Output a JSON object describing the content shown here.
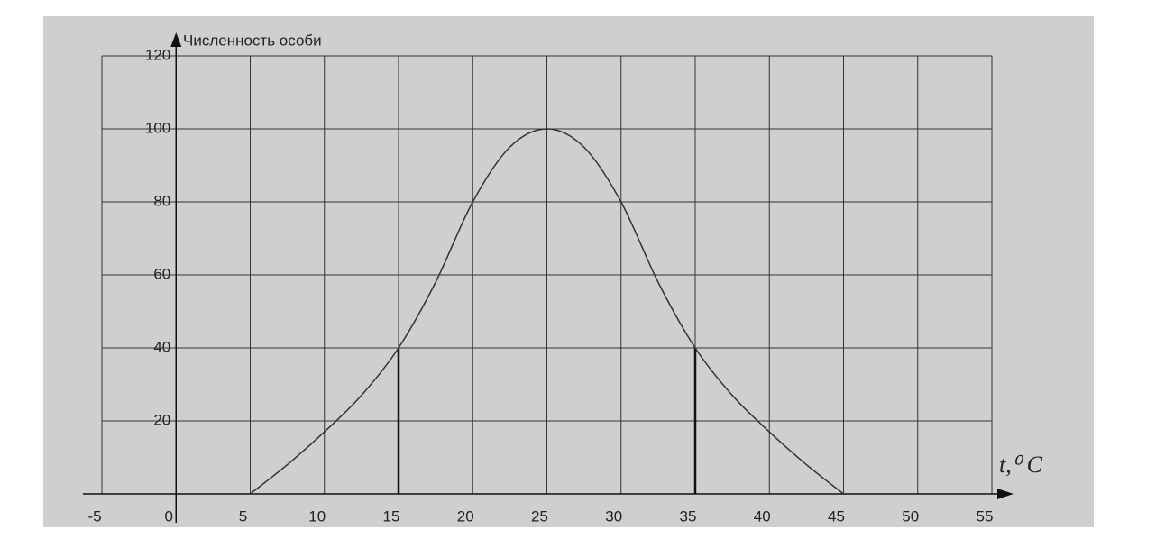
{
  "chart_data": {
    "type": "line",
    "y_axis_label": "Численность особи",
    "x_axis_label": "t,⁰ C",
    "x": [
      5,
      7.5,
      10,
      12.5,
      15,
      17.5,
      20,
      22.5,
      25,
      27.5,
      30,
      32.5,
      35,
      37.5,
      40,
      42.5,
      45
    ],
    "series": [
      {
        "color": "#333333",
        "values": [
          0,
          8,
          17,
          27,
          40,
          58,
          80,
          95,
          100,
          95,
          80,
          58,
          40,
          27,
          17,
          8,
          0
        ]
      }
    ],
    "drop_lines": [
      {
        "x": 15,
        "y": 40
      },
      {
        "x": 35,
        "y": 40
      }
    ],
    "xlim": [
      -5,
      55
    ],
    "ylim": [
      0,
      120
    ],
    "xticks": [
      -5,
      0,
      5,
      10,
      15,
      20,
      25,
      30,
      35,
      40,
      45,
      50,
      55
    ],
    "yticks": [
      20,
      40,
      60,
      80,
      100,
      120
    ],
    "grid": true
  }
}
